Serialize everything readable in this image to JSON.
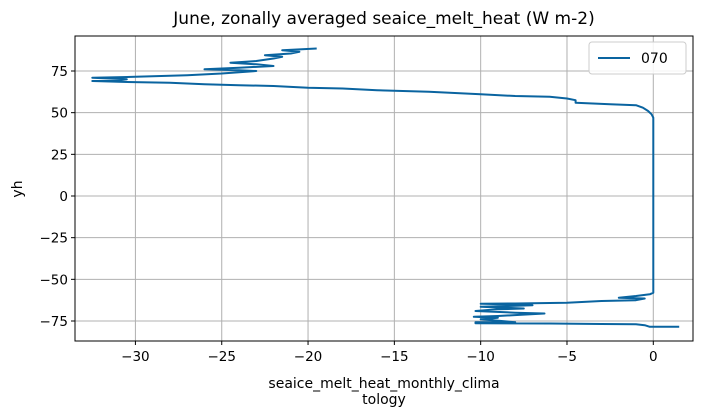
{
  "chart_data": {
    "type": "line",
    "title": "June, zonally averaged seaice_melt_heat (W m-2)",
    "xlabel_lines": [
      "seaice_melt_heat_monthly_clima",
      "tology"
    ],
    "ylabel": "yh",
    "xlim": [
      -33.5,
      2.3
    ],
    "ylim": [
      -87,
      96
    ],
    "xticks": [
      -30,
      -25,
      -20,
      -15,
      -10,
      -5,
      0
    ],
    "xtick_labels": [
      "−30",
      "−25",
      "−20",
      "−15",
      "−10",
      "−5",
      "0"
    ],
    "yticks": [
      -75,
      -50,
      -25,
      0,
      25,
      50,
      75
    ],
    "ytick_labels": [
      "−75",
      "−50",
      "−25",
      "0",
      "25",
      "50",
      "75"
    ],
    "grid": true,
    "legend_position": "top-right",
    "colors": {
      "series": "#0a64a0",
      "grid": "#b0b0b0"
    },
    "series": [
      {
        "name": "070",
        "points": [
          [
            1.5,
            -78.5
          ],
          [
            -0.2,
            -78.5
          ],
          [
            -0.5,
            -77.5
          ],
          [
            -1,
            -77
          ],
          [
            -3,
            -76.8
          ],
          [
            -6,
            -76.5
          ],
          [
            -10.3,
            -76.3
          ],
          [
            -10.3,
            -75.7
          ],
          [
            -8,
            -75.7
          ],
          [
            -10,
            -74
          ],
          [
            -9,
            -73
          ],
          [
            -10.4,
            -72.5
          ],
          [
            -9,
            -72
          ],
          [
            -6.3,
            -70.5
          ],
          [
            -8,
            -70
          ],
          [
            -10.3,
            -69
          ],
          [
            -9,
            -68
          ],
          [
            -7.5,
            -67.5
          ],
          [
            -10,
            -66.5
          ],
          [
            -8.5,
            -66
          ],
          [
            -7,
            -65.5
          ],
          [
            -8.5,
            -65
          ],
          [
            -10,
            -64.6
          ],
          [
            -8,
            -64.5
          ],
          [
            -5,
            -64
          ],
          [
            -3,
            -63
          ],
          [
            -1,
            -62.5
          ],
          [
            -0.5,
            -61.5
          ],
          [
            -2,
            -61
          ],
          [
            -1,
            -60
          ],
          [
            -0.2,
            -59
          ],
          [
            0,
            -58
          ],
          [
            0,
            -50
          ],
          [
            0,
            0
          ],
          [
            0,
            30
          ],
          [
            0,
            47
          ],
          [
            -0.1,
            49
          ],
          [
            -0.3,
            51
          ],
          [
            -0.6,
            53
          ],
          [
            -1,
            54.5
          ],
          [
            -2.5,
            55
          ],
          [
            -4.5,
            56
          ],
          [
            -4.5,
            57.5
          ],
          [
            -5,
            58.5
          ],
          [
            -6,
            59.5
          ],
          [
            -8,
            60
          ],
          [
            -10,
            61
          ],
          [
            -13,
            62.5
          ],
          [
            -16,
            63.5
          ],
          [
            -18,
            64.5
          ],
          [
            -20,
            65
          ],
          [
            -22,
            66
          ],
          [
            -24,
            66.5
          ],
          [
            -26,
            67
          ],
          [
            -28,
            68
          ],
          [
            -31,
            68.5
          ],
          [
            -32.5,
            69
          ],
          [
            -31,
            69.5
          ],
          [
            -30.5,
            70
          ],
          [
            -32.5,
            71
          ],
          [
            -30,
            71.5
          ],
          [
            -27,
            72.5
          ],
          [
            -25,
            73.5
          ],
          [
            -23,
            75
          ],
          [
            -24,
            75.5
          ],
          [
            -26,
            76
          ],
          [
            -24,
            77
          ],
          [
            -22,
            78
          ],
          [
            -23,
            79
          ],
          [
            -24.5,
            80
          ],
          [
            -23,
            81
          ],
          [
            -22,
            82.5
          ],
          [
            -21.5,
            83.5
          ],
          [
            -22.5,
            84.5
          ],
          [
            -21,
            85.5
          ],
          [
            -20.5,
            86.5
          ],
          [
            -21.5,
            87.5
          ],
          [
            -19.5,
            88.5
          ]
        ]
      }
    ]
  }
}
